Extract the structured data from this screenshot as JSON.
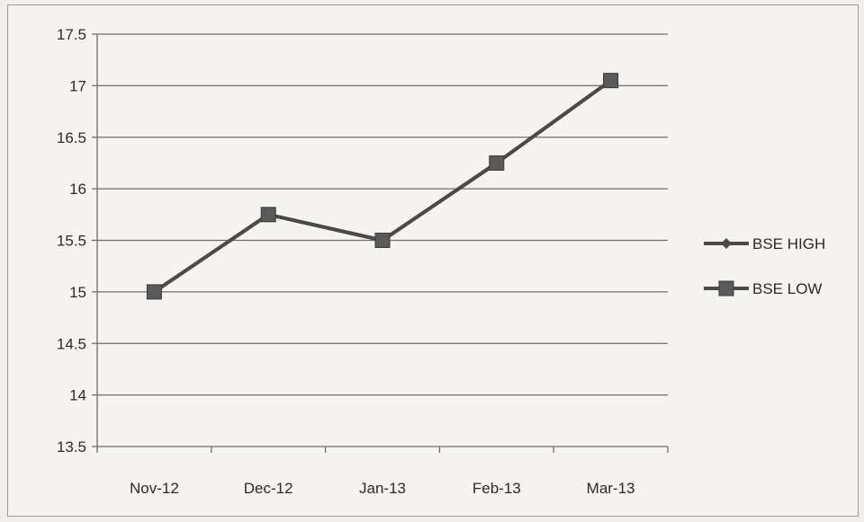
{
  "chart_data": {
    "type": "line",
    "title": "",
    "xlabel": "",
    "ylabel": "",
    "categories": [
      "Nov-12",
      "Dec-12",
      "Jan-13",
      "Feb-13",
      "Mar-13"
    ],
    "series": [
      {
        "name": "BSE HIGH",
        "values": [
          15.0,
          15.75,
          15.5,
          16.25,
          17.05
        ],
        "marker": "diamond",
        "color": "#4a4a4a"
      },
      {
        "name": "BSE LOW",
        "values": [
          15.0,
          15.75,
          15.5,
          16.25,
          17.05
        ],
        "marker": "square",
        "color": "#4a4a4a"
      }
    ],
    "ylim": [
      13.5,
      17.5
    ],
    "yticks": [
      "13.5",
      "14",
      "14.5",
      "15",
      "15.5",
      "16",
      "16.5",
      "17",
      "17.5"
    ],
    "grid": true,
    "legend_position": "right"
  }
}
